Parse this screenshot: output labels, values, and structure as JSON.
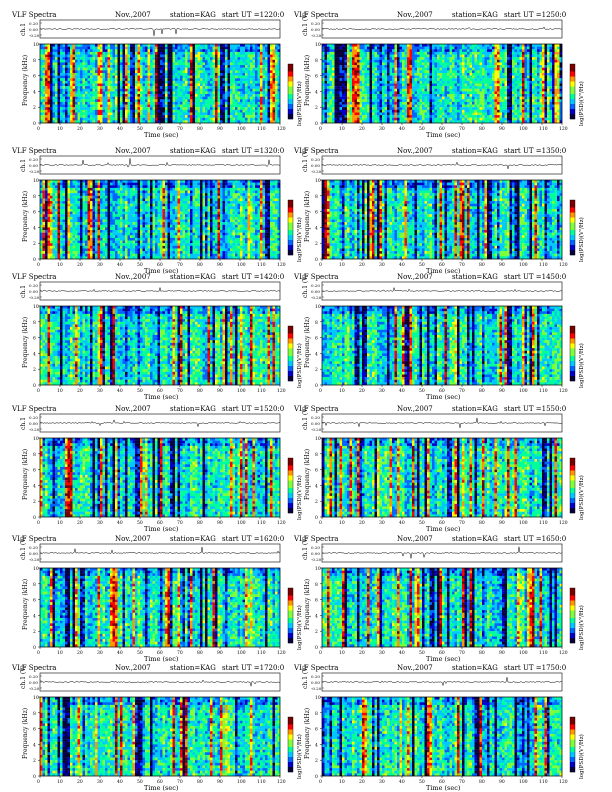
{
  "page": {
    "panels": [
      {
        "header": {
          "left": "VLF Spectra",
          "month": "Nov.,2007",
          "station": "station=KAG",
          "start": "start  UT  =1220:0"
        },
        "ylabel_top": "ch.1",
        "ylabel_mid": "Frequency (kHz)",
        "colorbar_label": "log(PSD)(V²/Hz)",
        "seed": 11
      },
      {
        "header": {
          "left": "VLF Spectra",
          "month": "Nov.,2007",
          "station": "station=KAG",
          "start": "start  UT  =1250:0"
        },
        "ylabel_top": "ch.1 (V)",
        "ylabel_mid": "Frequency (kHz)",
        "colorbar_label": "log(PSD)(V²/Hz)",
        "seed": 23
      },
      {
        "header": {
          "left": "VLF Spectra",
          "month": "Nov.,2007",
          "station": "station=KAG",
          "start": "start  UT  =1320:0"
        },
        "ylabel_top": "ch.1",
        "ylabel_mid": "Frequency (kHz)",
        "colorbar_label": "log(PSD)(V²/Hz)",
        "seed": 37
      },
      {
        "header": {
          "left": "VLF Spectra",
          "month": "Nov.,2007",
          "station": "station=KAG",
          "start": "start  UT  =1350:0"
        },
        "ylabel_top": "ch.1 (V)",
        "ylabel_mid": "Frequency (kHz)",
        "colorbar_label": "log(PSD)(V²/Hz)",
        "seed": 41
      },
      {
        "header": {
          "left": "VLF Spectra",
          "month": "Nov.,2007",
          "station": "station=KAG",
          "start": "start  UT  =1420:0"
        },
        "ylabel_top": "ch.1",
        "ylabel_mid": "Frequency (kHz)",
        "colorbar_label": "log(PSD)(V²/Hz)",
        "seed": 53
      },
      {
        "header": {
          "left": "VLF Spectra",
          "month": "Nov.,2007",
          "station": "station=KAG",
          "start": "start  UT  =1450:0"
        },
        "ylabel_top": "ch.1 (V)",
        "ylabel_mid": "Frequency (kHz)",
        "colorbar_label": "log(PSD)(V²/Hz)",
        "seed": 67
      },
      {
        "header": {
          "left": "VLF Spectra",
          "month": "Nov.,2007",
          "station": "station=KAG",
          "start": "start  UT  =1520:0"
        },
        "ylabel_top": "ch.1",
        "ylabel_mid": "Frequency (kHz)",
        "colorbar_label": "log(PSD)(V²/Hz)",
        "seed": 71
      },
      {
        "header": {
          "left": "VLF Spectra",
          "month": "Nov.,2007",
          "station": "station=KAG",
          "start": "start  UT  =1550:0"
        },
        "ylabel_top": "ch.1 (V)",
        "ylabel_mid": "Frequency (kHz)",
        "colorbar_label": "log(PSD)(V²/Hz)",
        "seed": 83
      },
      {
        "header": {
          "left": "VLF Spectra",
          "month": "Nov.,2007",
          "station": "station=KAG",
          "start": "start  UT  =1620:0"
        },
        "ylabel_top": "ch.1 (V)",
        "ylabel_mid": "Frequency (kHz)",
        "colorbar_label": "log(PSD)(V²/Hz)",
        "seed": 97
      },
      {
        "header": {
          "left": "VLF Spectra",
          "month": "Nov.,2007",
          "station": "station=KAG",
          "start": "start  UT  =1650:0"
        },
        "ylabel_top": "ch.1 (V)",
        "ylabel_mid": "Frequency (kHz)",
        "colorbar_label": "log(PSD)(V²/Hz)",
        "seed": 101
      },
      {
        "header": {
          "left": "VLF Spectra",
          "month": "Nov.,2007",
          "station": "station=KAG",
          "start": "start  UT  =1720:0"
        },
        "ylabel_top": "ch.1 (V)",
        "ylabel_mid": "Frequency (kHz)",
        "colorbar_label": "log(PSD)(V²/Hz)",
        "seed": 113
      },
      {
        "header": {
          "left": "VLF Spectra",
          "month": "Nov.,2007",
          "station": "station=KAG",
          "start": "start  UT  =1750:0"
        },
        "ylabel_top": "ch.1 (V)",
        "ylabel_mid": "Frequency (kHz)",
        "colorbar_label": "log(PSD)(V²/Hz)",
        "seed": 127
      }
    ]
  },
  "chart_data": {
    "type": "heatmap",
    "title": "VLF Spectra",
    "month": "Nov.,2007",
    "station": "station=KAG",
    "panel_count": 12,
    "start_times_ut": [
      "1220:0",
      "1250:0",
      "1320:0",
      "1350:0",
      "1420:0",
      "1450:0",
      "1520:0",
      "1550:0",
      "1620:0",
      "1650:0",
      "1720:0",
      "1750:0"
    ],
    "xlabel": "Time (sec)",
    "x_ticks": [
      0,
      10,
      20,
      30,
      40,
      50,
      60,
      70,
      80,
      90,
      100,
      110,
      120
    ],
    "xlim": [
      0,
      120
    ],
    "ylabel": "Frequency (kHz)",
    "y_ticks": [
      0,
      2,
      4,
      6,
      8,
      10
    ],
    "ylim": [
      0,
      10
    ],
    "waveform_ylabel": "ch.1 (V)",
    "waveform_ticks": [
      "0.20",
      "0.00",
      "-0.20"
    ],
    "waveform_ylim": [
      -0.2,
      0.2
    ],
    "colorbar_label": "log(PSD)(V²/Hz)",
    "colormap": [
      "#08003a",
      "#0000c8",
      "#0064ff",
      "#00c8ff",
      "#00ff9a",
      "#7dff3a",
      "#ffff00",
      "#ff9600",
      "#ff0000",
      "#7a0000"
    ],
    "background": "#ffffff"
  }
}
